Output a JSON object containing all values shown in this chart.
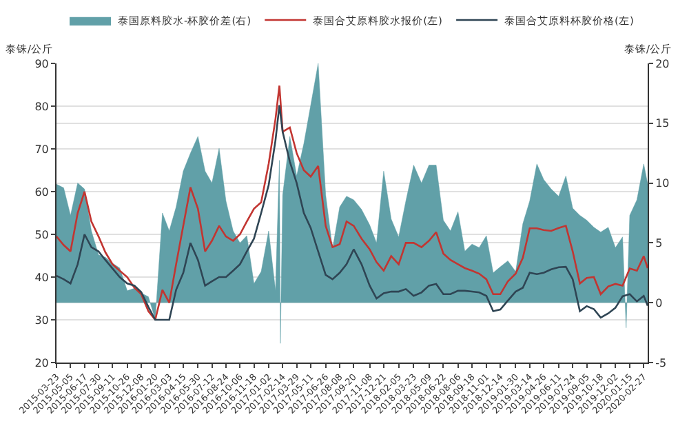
{
  "chart_data": {
    "type": "line",
    "ylabel": "泰铢/公斤",
    "y2label": "泰铢/公斤",
    "xlim": [
      "2015-03-23",
      "2020-03-10"
    ],
    "xticks": [
      "2015-03-23",
      "2015-05-05",
      "2015-06-17",
      "2015-07-30",
      "2015-09-11",
      "2015-10-26",
      "2015-12-08",
      "2016-01-20",
      "2016-03-03",
      "2016-04-15",
      "2016-05-30",
      "2016-07-12",
      "2016-08-24",
      "2016-10-06",
      "2016-11-18",
      "2017-01-02",
      "2017-02-14",
      "2017-03-29",
      "2017-05-11",
      "2017-06-26",
      "2017-08-08",
      "2017-09-20",
      "2017-11-08",
      "2017-12-21",
      "2018-02-05",
      "2018-03-23",
      "2018-05-09",
      "2018-06-22",
      "2018-08-06",
      "2018-09-18",
      "2018-11-01",
      "2018-12-14",
      "2019-01-30",
      "2019-03-14",
      "2019-04-26",
      "2019-06-11",
      "2019-07-24",
      "2019-09-05",
      "2019-10-18",
      "2019-12-02",
      "2020-01-15",
      "2020-02-27"
    ],
    "ylim": [
      20,
      90
    ],
    "yticks": [
      20,
      30,
      40,
      50,
      60,
      70,
      80,
      90
    ],
    "y2lim": [
      -5,
      20
    ],
    "y2ticks": [
      -5,
      0,
      5,
      10,
      15,
      20
    ],
    "grid": "y",
    "legend": "top",
    "series": [
      {
        "name": "泰国原料胶水-杯胶价差(右)",
        "type": "area",
        "axis": "y2",
        "color": "#61a0a8",
        "x": [
          "2015-03-23",
          "2015-04-14",
          "2015-05-05",
          "2015-05-27",
          "2015-06-17",
          "2015-07-08",
          "2015-07-30",
          "2015-08-20",
          "2015-09-11",
          "2015-10-03",
          "2015-10-26",
          "2015-11-17",
          "2015-12-08",
          "2015-12-30",
          "2016-01-20",
          "2016-02-11",
          "2016-03-03",
          "2016-03-24",
          "2016-04-15",
          "2016-05-07",
          "2016-05-30",
          "2016-06-21",
          "2016-07-12",
          "2016-08-03",
          "2016-08-24",
          "2016-09-15",
          "2016-10-06",
          "2016-10-27",
          "2016-11-18",
          "2016-12-10",
          "2017-01-02",
          "2017-01-23",
          "2017-02-04",
          "2017-02-07",
          "2017-02-14",
          "2017-03-08",
          "2017-03-29",
          "2017-04-20",
          "2017-05-11",
          "2017-06-03",
          "2017-06-26",
          "2017-07-17",
          "2017-08-08",
          "2017-08-29",
          "2017-09-20",
          "2017-10-14",
          "2017-11-08",
          "2017-11-29",
          "2017-12-21",
          "2018-01-13",
          "2018-02-05",
          "2018-02-27",
          "2018-03-23",
          "2018-04-16",
          "2018-05-09",
          "2018-05-31",
          "2018-06-22",
          "2018-07-14",
          "2018-08-06",
          "2018-08-27",
          "2018-09-18",
          "2018-10-10",
          "2018-11-01",
          "2018-11-22",
          "2018-12-14",
          "2019-01-06",
          "2019-01-30",
          "2019-02-21",
          "2019-03-14",
          "2019-04-05",
          "2019-04-26",
          "2019-05-19",
          "2019-06-11",
          "2019-07-03",
          "2019-07-24",
          "2019-08-15",
          "2019-09-05",
          "2019-09-27",
          "2019-10-18",
          "2019-11-10",
          "2019-12-02",
          "2019-12-24",
          "2020-01-04",
          "2020-01-15",
          "2020-02-06",
          "2020-02-27",
          "2020-03-10"
        ],
        "values": [
          9.9,
          9.6,
          7.3,
          10,
          9.5,
          6,
          4,
          3.8,
          3.3,
          2.9,
          1,
          1.2,
          0.8,
          0.5,
          -1.4,
          7.5,
          6,
          8,
          11,
          12.5,
          13.9,
          11,
          10,
          12.9,
          8.5,
          6,
          5,
          5.6,
          1.6,
          2.6,
          6,
          1,
          11.9,
          -3.4,
          9,
          13.9,
          10.6,
          13.3,
          16.5,
          20,
          9,
          4.5,
          8,
          8.9,
          8.6,
          7.8,
          6.5,
          5,
          11,
          7,
          5.5,
          8.5,
          11.5,
          10,
          11.5,
          11.5,
          6.9,
          6,
          7.6,
          4.3,
          4.9,
          4.6,
          5.6,
          2.5,
          3,
          3.5,
          2.6,
          6.6,
          8.5,
          11.6,
          10.3,
          9.5,
          8.9,
          10.6,
          7.9,
          7.3,
          6.9,
          6.3,
          5.9,
          6.3,
          4.6,
          5.5,
          -2.1,
          7.3,
          8.6,
          11.6,
          9.9
        ]
      },
      {
        "name": "泰国合艾原料胶水报价(左)",
        "color": "#c23531",
        "x": [
          "2015-03-23",
          "2015-04-14",
          "2015-05-05",
          "2015-05-27",
          "2015-06-17",
          "2015-07-08",
          "2015-07-30",
          "2015-08-20",
          "2015-09-11",
          "2015-10-03",
          "2015-10-26",
          "2015-11-17",
          "2015-12-08",
          "2015-12-30",
          "2016-01-20",
          "2016-02-11",
          "2016-03-03",
          "2016-03-24",
          "2016-04-15",
          "2016-05-07",
          "2016-05-30",
          "2016-06-21",
          "2016-07-12",
          "2016-08-03",
          "2016-08-24",
          "2016-09-15",
          "2016-10-06",
          "2016-10-27",
          "2016-11-18",
          "2016-12-10",
          "2017-01-02",
          "2017-01-23",
          "2017-02-04",
          "2017-02-14",
          "2017-03-08",
          "2017-03-29",
          "2017-04-20",
          "2017-05-11",
          "2017-06-03",
          "2017-06-26",
          "2017-07-17",
          "2017-08-08",
          "2017-08-29",
          "2017-09-20",
          "2017-10-14",
          "2017-11-08",
          "2017-11-29",
          "2017-12-21",
          "2018-01-13",
          "2018-02-05",
          "2018-02-27",
          "2018-03-23",
          "2018-04-16",
          "2018-05-09",
          "2018-05-31",
          "2018-06-22",
          "2018-07-14",
          "2018-08-06",
          "2018-08-27",
          "2018-09-18",
          "2018-10-10",
          "2018-11-01",
          "2018-11-22",
          "2018-12-14",
          "2019-01-06",
          "2019-01-30",
          "2019-02-21",
          "2019-03-14",
          "2019-04-05",
          "2019-04-26",
          "2019-05-19",
          "2019-06-11",
          "2019-07-03",
          "2019-07-24",
          "2019-08-15",
          "2019-09-05",
          "2019-09-27",
          "2019-10-18",
          "2019-11-10",
          "2019-12-02",
          "2019-12-24",
          "2020-01-15",
          "2020-02-06",
          "2020-02-27",
          "2020-03-10"
        ],
        "values": [
          49.5,
          47.5,
          46,
          55,
          60,
          53,
          49.5,
          45.8,
          43,
          41.5,
          40,
          37.5,
          36,
          32,
          30,
          37,
          34,
          43,
          52,
          61,
          56,
          46,
          48.5,
          52,
          49.5,
          48.5,
          50,
          53,
          56,
          57.5,
          66.5,
          77,
          84.8,
          74,
          75,
          69,
          65,
          63.5,
          66,
          52,
          47,
          47.7,
          53,
          52,
          49,
          46.5,
          43.5,
          41.5,
          44.9,
          43,
          48,
          48,
          47,
          48.5,
          50.5,
          45.5,
          44,
          43,
          42.1,
          41.5,
          40.8,
          39.5,
          36,
          36,
          39,
          40.8,
          44.5,
          51.4,
          51.4,
          51,
          50.8,
          51.5,
          52,
          46,
          38.5,
          39.8,
          40,
          36,
          37.8,
          38.4,
          38,
          42,
          41.5,
          44.9,
          42.1
        ]
      },
      {
        "name": "泰国合艾原料杯胶价格(左)",
        "color": "#2f4554",
        "x": [
          "2015-03-23",
          "2015-04-14",
          "2015-05-05",
          "2015-05-27",
          "2015-06-17",
          "2015-07-08",
          "2015-07-30",
          "2015-08-20",
          "2015-09-11",
          "2015-10-03",
          "2015-10-26",
          "2015-11-17",
          "2015-12-08",
          "2015-12-30",
          "2016-01-20",
          "2016-02-11",
          "2016-03-03",
          "2016-03-24",
          "2016-04-15",
          "2016-05-07",
          "2016-05-30",
          "2016-06-21",
          "2016-07-12",
          "2016-08-03",
          "2016-08-24",
          "2016-09-15",
          "2016-10-06",
          "2016-10-27",
          "2016-11-18",
          "2016-12-10",
          "2017-01-02",
          "2017-01-23",
          "2017-02-04",
          "2017-02-14",
          "2017-03-08",
          "2017-03-29",
          "2017-04-20",
          "2017-05-11",
          "2017-06-03",
          "2017-06-26",
          "2017-07-17",
          "2017-08-08",
          "2017-08-29",
          "2017-09-20",
          "2017-10-14",
          "2017-11-08",
          "2017-11-29",
          "2017-12-21",
          "2018-01-13",
          "2018-02-05",
          "2018-02-27",
          "2018-03-23",
          "2018-04-16",
          "2018-05-09",
          "2018-05-31",
          "2018-06-22",
          "2018-07-14",
          "2018-08-06",
          "2018-08-27",
          "2018-09-18",
          "2018-10-10",
          "2018-11-01",
          "2018-11-22",
          "2018-12-14",
          "2019-01-06",
          "2019-01-30",
          "2019-02-21",
          "2019-03-14",
          "2019-04-05",
          "2019-04-26",
          "2019-05-19",
          "2019-06-11",
          "2019-07-03",
          "2019-07-24",
          "2019-08-15",
          "2019-09-05",
          "2019-09-27",
          "2019-10-18",
          "2019-11-10",
          "2019-12-02",
          "2019-12-24",
          "2020-01-15",
          "2020-02-06",
          "2020-02-27",
          "2020-03-10"
        ],
        "values": [
          40.3,
          39.5,
          38.5,
          43,
          50,
          47,
          46,
          44,
          42,
          40,
          38.5,
          38,
          36.5,
          33,
          30,
          30,
          30,
          37,
          41,
          48,
          44,
          38,
          39,
          40,
          40,
          41.5,
          43,
          46,
          49,
          55,
          61.5,
          72,
          80.2,
          74,
          67,
          62,
          55,
          51.5,
          46,
          40.5,
          39.5,
          41,
          43,
          46.5,
          43,
          38,
          35,
          36.2,
          36.6,
          36.6,
          37.2,
          35.6,
          36.4,
          38,
          38.4,
          36,
          36,
          36.8,
          36.8,
          36.6,
          36.4,
          35.6,
          32,
          32.4,
          34.5,
          36.6,
          37.5,
          41,
          40.7,
          41,
          41.8,
          42.3,
          42.4,
          39.5,
          32,
          33.2,
          32.5,
          30.5,
          31.5,
          32.8,
          35.5,
          36,
          34.3,
          35.6,
          33.3
        ]
      }
    ]
  }
}
